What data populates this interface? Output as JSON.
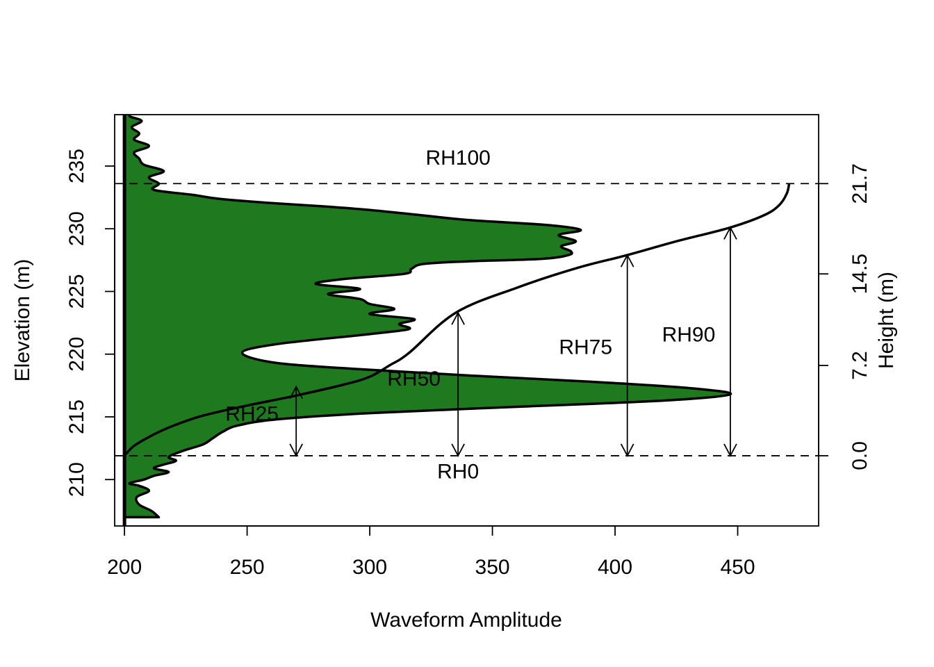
{
  "chart_data": {
    "type": "line",
    "xlabel": "Waveform Amplitude",
    "ylabel": "Elevation (m)",
    "ylabel_right": "Height (m)",
    "xlim": [
      196,
      483
    ],
    "ylim": [
      206.3,
      239.1
    ],
    "x_ticks": [
      200,
      250,
      300,
      350,
      400,
      450
    ],
    "y_ticks": [
      210,
      215,
      220,
      225,
      230,
      235
    ],
    "right_ticks": [
      {
        "label": "0.0",
        "elevation": 211.9
      },
      {
        "label": "7.2",
        "elevation": 219.1
      },
      {
        "label": "14.5",
        "elevation": 226.4
      },
      {
        "label": "21.7",
        "elevation": 233.6
      }
    ],
    "baseline_x": 200,
    "ground_elevation": 211.9,
    "top_elevation": 233.6,
    "waveform_fill_color": "#1f7a1f",
    "waveform": {
      "x": [
        214,
        211,
        206,
        205,
        210,
        206,
        202,
        208,
        212,
        218,
        212,
        216,
        221,
        218,
        224,
        232,
        236,
        240,
        246,
        262,
        300,
        360,
        420,
        447,
        430,
        390,
        340,
        296,
        262,
        248,
        262,
        300,
        316,
        312,
        318,
        300,
        310,
        300,
        296,
        283,
        296,
        278,
        290,
        314,
        317,
        322,
        340,
        370,
        381,
        382,
        378,
        384,
        377,
        386,
        372,
        340,
        320,
        300,
        280,
        256,
        238,
        228,
        212,
        214,
        210,
        216,
        208,
        206,
        204,
        210,
        204,
        206,
        203,
        207,
        202,
        205,
        204,
        203
      ],
      "y": [
        207.0,
        207.5,
        208.0,
        208.6,
        209.1,
        209.5,
        209.7,
        210.0,
        210.3,
        210.6,
        210.9,
        211.2,
        211.5,
        211.8,
        212.3,
        212.8,
        213.3,
        213.8,
        214.3,
        214.8,
        215.3,
        215.8,
        216.3,
        216.8,
        217.3,
        217.8,
        218.3,
        218.8,
        219.3,
        220.1,
        220.8,
        221.6,
        222.0,
        222.4,
        222.8,
        223.2,
        223.6,
        224.0,
        224.4,
        224.8,
        225.2,
        225.6,
        226.0,
        226.4,
        226.8,
        227.2,
        227.4,
        227.6,
        227.9,
        228.2,
        228.6,
        229.0,
        229.5,
        229.9,
        230.3,
        230.7,
        231.1,
        231.5,
        231.8,
        232.1,
        232.4,
        232.7,
        233.1,
        233.6,
        234.1,
        234.6,
        235.1,
        235.6,
        236.1,
        236.6,
        237.1,
        237.6,
        238.1,
        238.6,
        239.0,
        239.4,
        239.7,
        240.0
      ]
    },
    "cumulative": {
      "x": [
        200,
        204,
        212,
        220,
        232,
        250,
        270,
        290,
        300,
        308,
        316,
        335,
        360,
        385,
        405,
        425,
        447,
        461,
        467,
        470,
        471
      ],
      "y": [
        211.9,
        212.7,
        213.6,
        214.3,
        215.1,
        215.9,
        216.7,
        217.6,
        218.2,
        219.1,
        220.1,
        223.3,
        225.3,
        226.9,
        227.9,
        229.0,
        230.1,
        231.1,
        231.9,
        232.8,
        233.6
      ]
    },
    "rh_markers": [
      {
        "label": "RH25",
        "x": 270,
        "top": 217.4,
        "label_x": 252,
        "label_y": 214.7
      },
      {
        "label": "RH50",
        "x": 336,
        "top": 223.3,
        "label_x": 318,
        "label_y": 217.5
      },
      {
        "label": "RH75",
        "x": 405,
        "top": 227.9,
        "label_x": 388,
        "label_y": 220.0
      },
      {
        "label": "RH90",
        "x": 447,
        "top": 230.1,
        "label_x": 430,
        "label_y": 221.0
      }
    ],
    "line_labels": [
      {
        "label": "RH100",
        "x": 336,
        "y": 235.1
      },
      {
        "label": "RH0",
        "x": 336,
        "y": 210.1
      }
    ]
  }
}
